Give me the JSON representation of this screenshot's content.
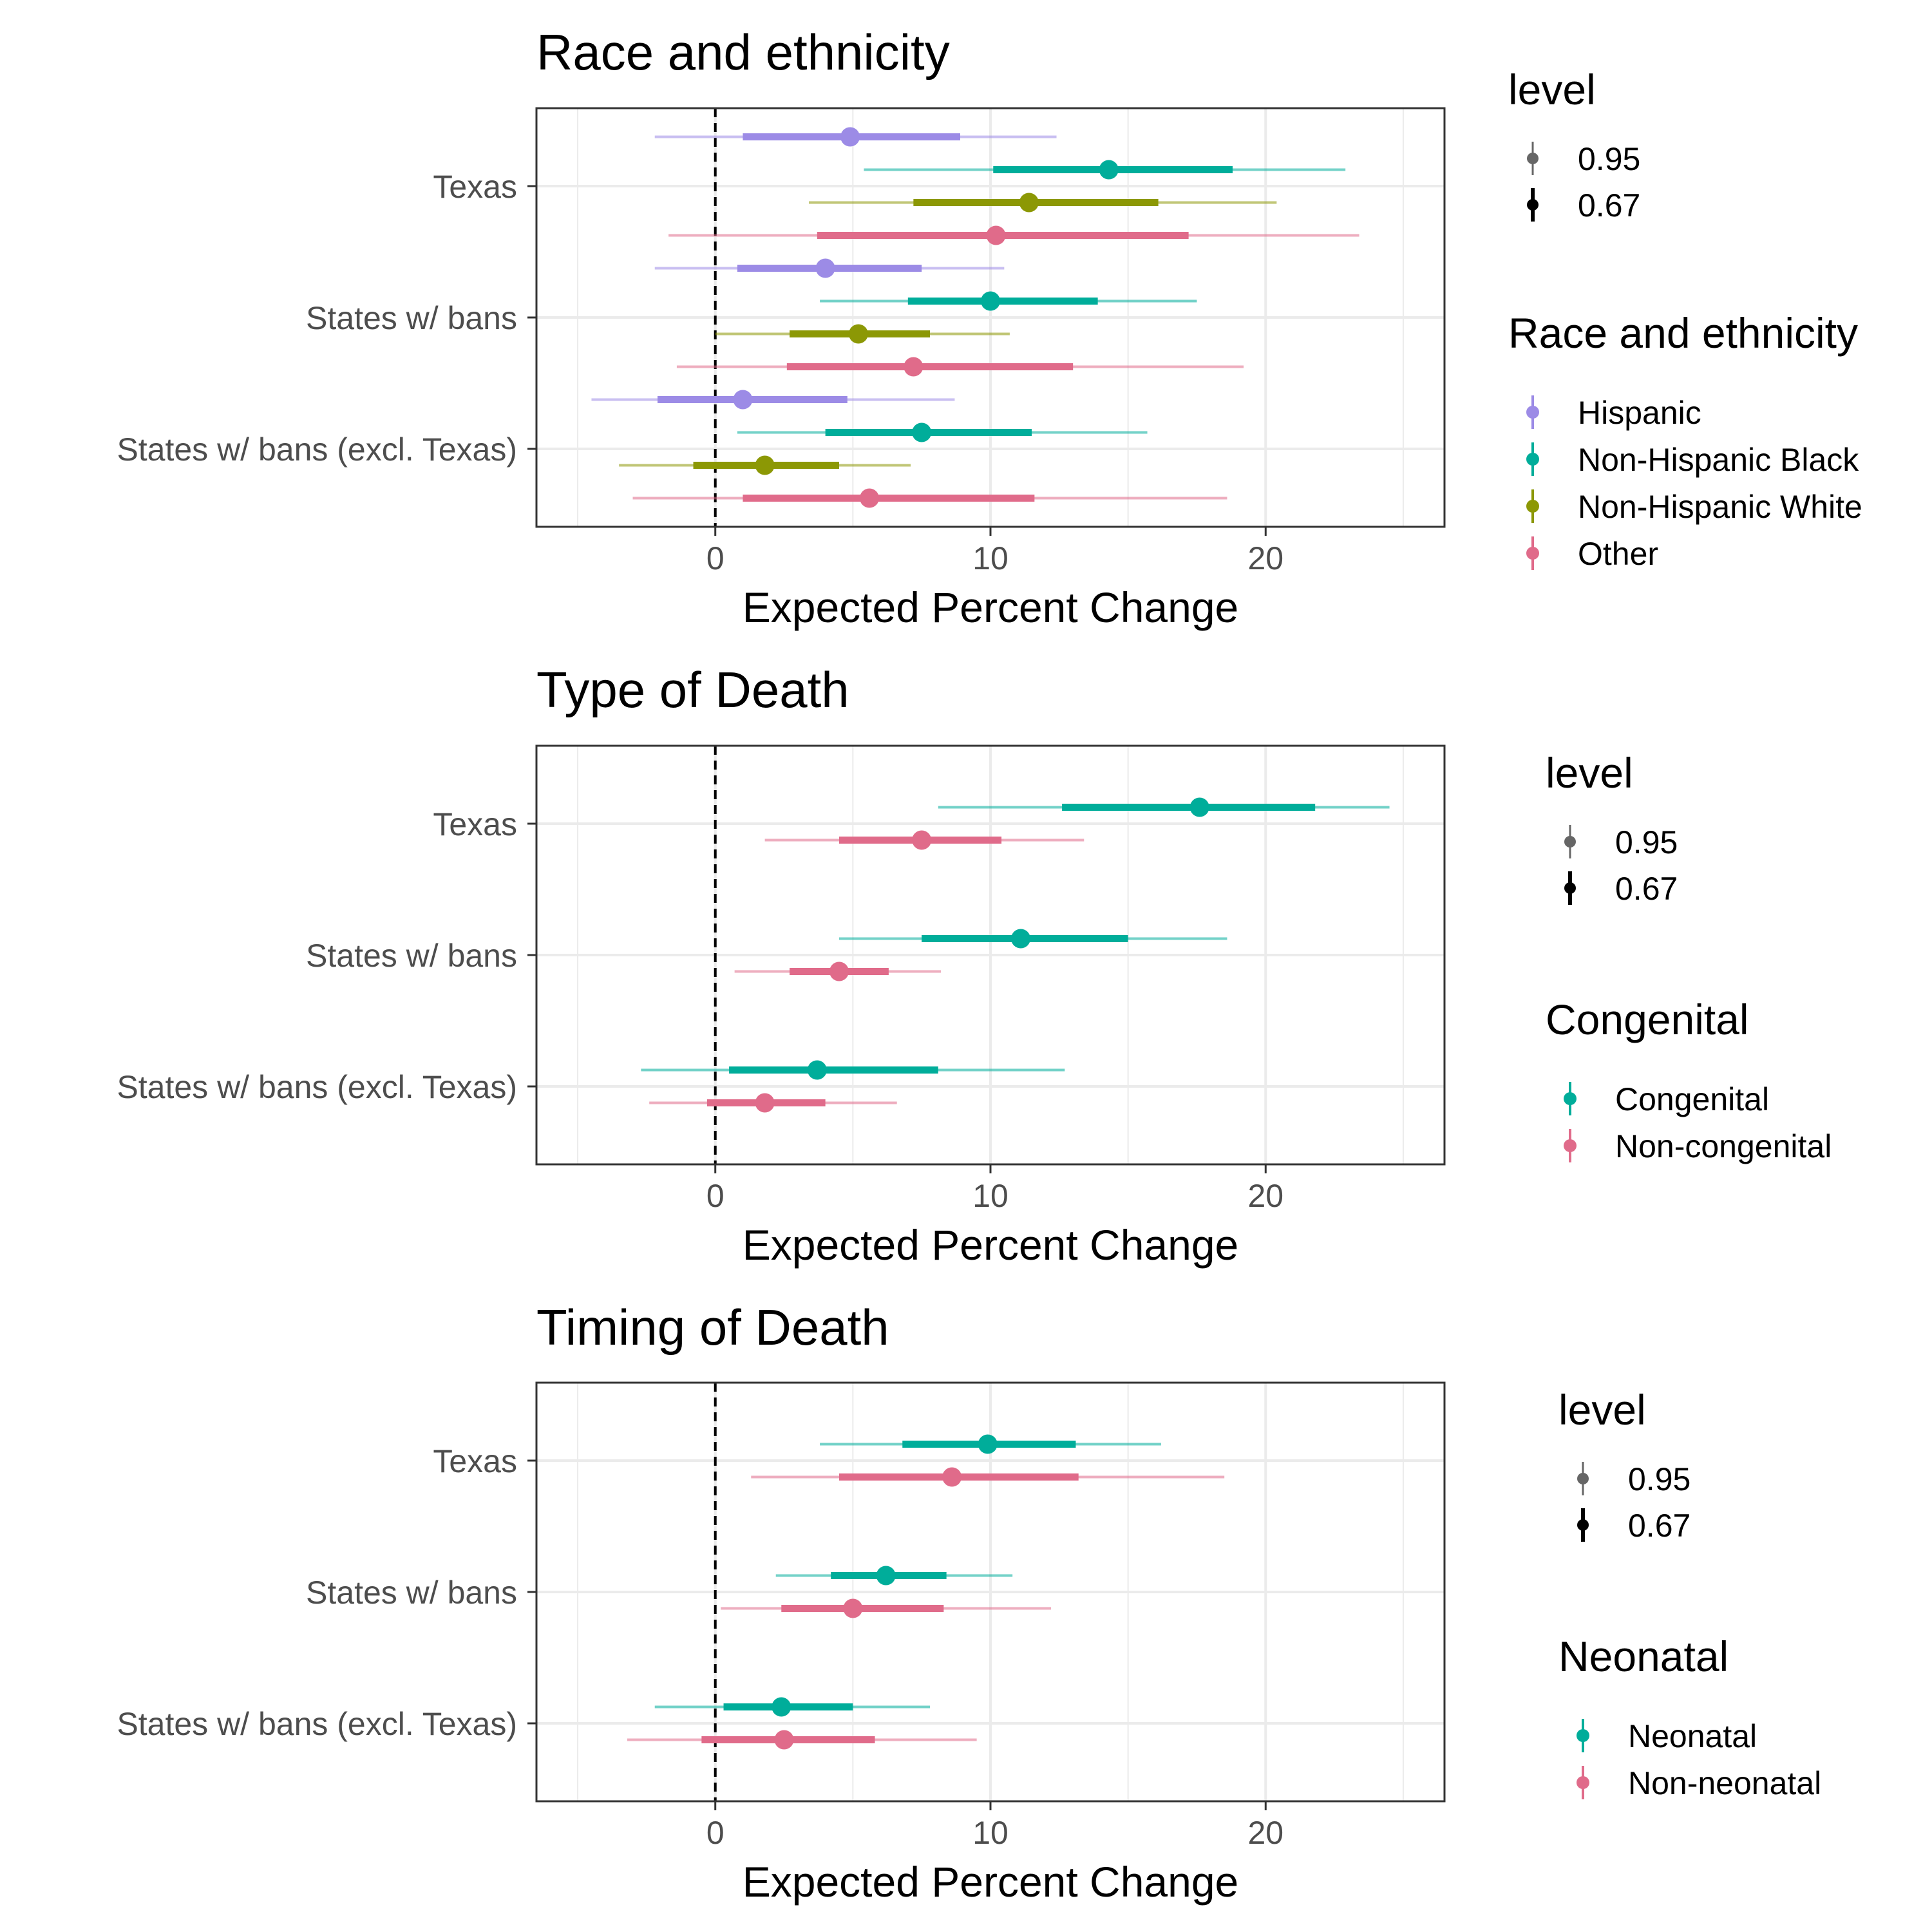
{
  "chart_data": [
    {
      "type": "pointrange",
      "title": "Race and ethnicity",
      "xlabel": "Expected Percent Change",
      "xlim": [
        -6.5,
        26.5
      ],
      "xticks": [
        0,
        10,
        20
      ],
      "xtick_labels": [
        "0",
        "10",
        "20"
      ],
      "reference_line_x": 0,
      "categories": [
        "Texas",
        "States w/ bans",
        "States w/ bans (excl. Texas)"
      ],
      "legend": {
        "level_title": "level",
        "levels": [
          "0.95",
          "0.67"
        ],
        "group_title": "Race and ethnicity",
        "groups": [
          {
            "name": "Hispanic",
            "color": "#9c8be6"
          },
          {
            "name": "Non-Hispanic Black",
            "color": "#00ad9a"
          },
          {
            "name": "Non-Hispanic White",
            "color": "#8c9805"
          },
          {
            "name": "Other",
            "color": "#e06b8a"
          }
        ]
      },
      "series": [
        {
          "name": "Hispanic",
          "color": "#9c8be6",
          "points": [
            {
              "category": "Texas",
              "estimate": 4.9,
              "ci95": [
                -2.2,
                12.4
              ],
              "ci67": [
                1.0,
                8.9
              ]
            },
            {
              "category": "States w/ bans",
              "estimate": 4.0,
              "ci95": [
                -2.2,
                10.5
              ],
              "ci67": [
                0.8,
                7.5
              ]
            },
            {
              "category": "States w/ bans (excl. Texas)",
              "estimate": 1.0,
              "ci95": [
                -4.5,
                8.7
              ],
              "ci67": [
                -2.1,
                4.8
              ]
            }
          ]
        },
        {
          "name": "Non-Hispanic Black",
          "color": "#00ad9a",
          "points": [
            {
              "category": "Texas",
              "estimate": 14.3,
              "ci95": [
                5.4,
                22.9
              ],
              "ci67": [
                10.1,
                18.8
              ]
            },
            {
              "category": "States w/ bans",
              "estimate": 10.0,
              "ci95": [
                3.8,
                17.5
              ],
              "ci67": [
                7.0,
                13.9
              ]
            },
            {
              "category": "States w/ bans (excl. Texas)",
              "estimate": 7.5,
              "ci95": [
                0.8,
                15.7
              ],
              "ci67": [
                4.0,
                11.5
              ]
            }
          ]
        },
        {
          "name": "Non-Hispanic White",
          "color": "#8c9805",
          "points": [
            {
              "category": "Texas",
              "estimate": 11.4,
              "ci95": [
                3.4,
                20.4
              ],
              "ci67": [
                7.2,
                16.1
              ]
            },
            {
              "category": "States w/ bans",
              "estimate": 5.2,
              "ci95": [
                0.0,
                10.7
              ],
              "ci67": [
                2.7,
                7.8
              ]
            },
            {
              "category": "States w/ bans (excl. Texas)",
              "estimate": 1.8,
              "ci95": [
                -3.5,
                7.1
              ],
              "ci67": [
                -0.8,
                4.5
              ]
            }
          ]
        },
        {
          "name": "Other",
          "color": "#e06b8a",
          "points": [
            {
              "category": "Texas",
              "estimate": 10.2,
              "ci95": [
                -1.7,
                23.4
              ],
              "ci67": [
                3.7,
                17.2
              ]
            },
            {
              "category": "States w/ bans",
              "estimate": 7.2,
              "ci95": [
                -1.4,
                19.2
              ],
              "ci67": [
                2.6,
                13.0
              ]
            },
            {
              "category": "States w/ bans (excl. Texas)",
              "estimate": 5.6,
              "ci95": [
                -3.0,
                18.6
              ],
              "ci67": [
                1.0,
                11.6
              ]
            }
          ]
        }
      ]
    },
    {
      "type": "pointrange",
      "title": "Type of Death",
      "xlabel": "Expected Percent Change",
      "xlim": [
        -6.5,
        26.5
      ],
      "xticks": [
        0,
        10,
        20
      ],
      "xtick_labels": [
        "0",
        "10",
        "20"
      ],
      "reference_line_x": 0,
      "categories": [
        "Texas",
        "States w/ bans",
        "States w/ bans (excl. Texas)"
      ],
      "legend": {
        "level_title": "level",
        "levels": [
          "0.95",
          "0.67"
        ],
        "group_title": "Congenital",
        "groups": [
          {
            "name": "Congenital",
            "color": "#00ad9a"
          },
          {
            "name": "Non-congenital",
            "color": "#e06b8a"
          }
        ]
      },
      "series": [
        {
          "name": "Congenital",
          "color": "#00ad9a",
          "points": [
            {
              "category": "Texas",
              "estimate": 17.6,
              "ci95": [
                8.1,
                24.5
              ],
              "ci67": [
                12.6,
                21.8
              ]
            },
            {
              "category": "States w/ bans",
              "estimate": 11.1,
              "ci95": [
                4.5,
                18.6
              ],
              "ci67": [
                7.5,
                15.0
              ]
            },
            {
              "category": "States w/ bans (excl. Texas)",
              "estimate": 3.7,
              "ci95": [
                -2.7,
                12.7
              ],
              "ci67": [
                0.5,
                8.1
              ]
            }
          ]
        },
        {
          "name": "Non-congenital",
          "color": "#e06b8a",
          "points": [
            {
              "category": "Texas",
              "estimate": 7.5,
              "ci95": [
                1.8,
                13.4
              ],
              "ci67": [
                4.5,
                10.4
              ]
            },
            {
              "category": "States w/ bans",
              "estimate": 4.5,
              "ci95": [
                0.7,
                8.2
              ],
              "ci67": [
                2.7,
                6.3
              ]
            },
            {
              "category": "States w/ bans (excl. Texas)",
              "estimate": 1.8,
              "ci95": [
                -2.4,
                6.6
              ],
              "ci67": [
                -0.3,
                4.0
              ]
            }
          ]
        }
      ]
    },
    {
      "type": "pointrange",
      "title": "Timing of Death",
      "xlabel": "Expected Percent Change",
      "xlim": [
        -6.5,
        26.5
      ],
      "xticks": [
        0,
        10,
        20
      ],
      "xtick_labels": [
        "0",
        "10",
        "20"
      ],
      "reference_line_x": 0,
      "categories": [
        "Texas",
        "States w/ bans",
        "States w/ bans (excl. Texas)"
      ],
      "legend": {
        "level_title": "level",
        "levels": [
          "0.95",
          "0.67"
        ],
        "group_title": "Neonatal",
        "groups": [
          {
            "name": "Neonatal",
            "color": "#00ad9a"
          },
          {
            "name": "Non-neonatal",
            "color": "#e06b8a"
          }
        ]
      },
      "series": [
        {
          "name": "Neonatal",
          "color": "#00ad9a",
          "points": [
            {
              "category": "Texas",
              "estimate": 9.9,
              "ci95": [
                3.8,
                16.2
              ],
              "ci67": [
                6.8,
                13.1
              ]
            },
            {
              "category": "States w/ bans",
              "estimate": 6.2,
              "ci95": [
                2.2,
                10.8
              ],
              "ci67": [
                4.2,
                8.4
              ]
            },
            {
              "category": "States w/ bans (excl. Texas)",
              "estimate": 2.4,
              "ci95": [
                -2.2,
                7.8
              ],
              "ci67": [
                0.3,
                5.0
              ]
            }
          ]
        },
        {
          "name": "Non-neonatal",
          "color": "#e06b8a",
          "points": [
            {
              "category": "Texas",
              "estimate": 8.6,
              "ci95": [
                1.3,
                18.5
              ],
              "ci67": [
                4.5,
                13.2
              ]
            },
            {
              "category": "States w/ bans",
              "estimate": 5.0,
              "ci95": [
                0.2,
                12.2
              ],
              "ci67": [
                2.4,
                8.3
              ]
            },
            {
              "category": "States w/ bans (excl. Texas)",
              "estimate": 2.5,
              "ci95": [
                -3.2,
                9.5
              ],
              "ci67": [
                -0.5,
                5.8
              ]
            }
          ]
        }
      ]
    }
  ]
}
